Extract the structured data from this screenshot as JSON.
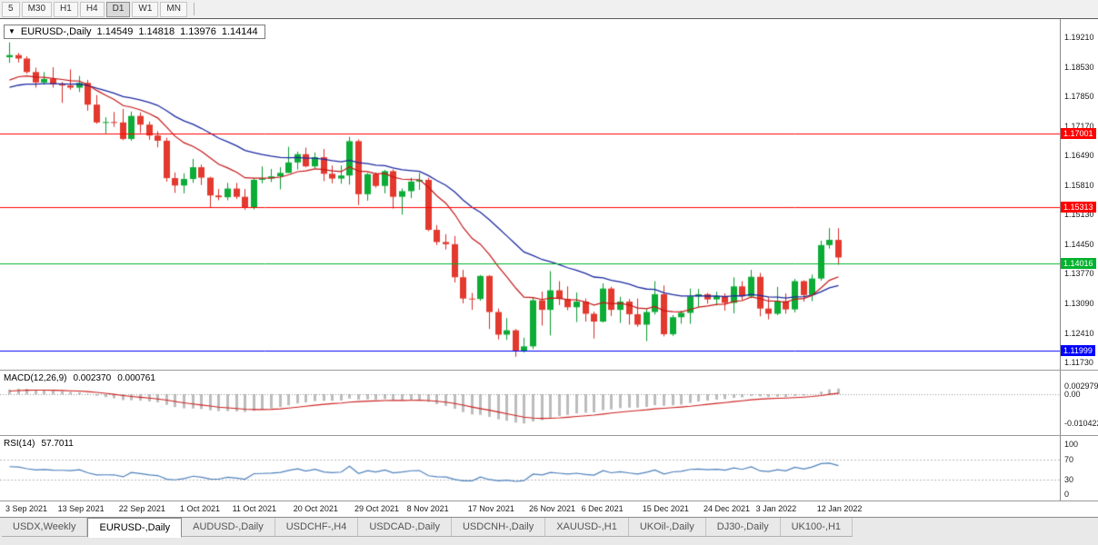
{
  "toolbar": {
    "timeframes": [
      {
        "label": "5",
        "active": false
      },
      {
        "label": "M30",
        "active": false
      },
      {
        "label": "H1",
        "active": false
      },
      {
        "label": "H4",
        "active": false
      },
      {
        "label": "D1",
        "active": true
      },
      {
        "label": "W1",
        "active": false
      },
      {
        "label": "MN",
        "active": false
      }
    ]
  },
  "chart": {
    "title": {
      "symbol": "EURUSD-,Daily",
      "open": "1.14549",
      "high": "1.14818",
      "low": "1.13976",
      "close": "1.14144"
    }
  },
  "chart_data": {
    "type": "candlestick",
    "symbol": "EURUSD-",
    "timeframe": "Daily",
    "candles": [
      [
        1.1875,
        1.1909,
        1.1862,
        1.188
      ],
      [
        1.188,
        1.1885,
        1.1863,
        1.1872
      ],
      [
        1.1872,
        1.1877,
        1.1837,
        1.1841
      ],
      [
        1.1841,
        1.1851,
        1.1805,
        1.1817
      ],
      [
        1.1817,
        1.1841,
        1.1812,
        1.1825
      ],
      [
        1.1825,
        1.1852,
        1.1805,
        1.1813
      ],
      [
        1.1813,
        1.1818,
        1.177,
        1.181
      ],
      [
        1.181,
        1.1847,
        1.18,
        1.1805
      ],
      [
        1.1805,
        1.1832,
        1.1795,
        1.1816
      ],
      [
        1.1816,
        1.1823,
        1.1752,
        1.1766
      ],
      [
        1.1766,
        1.1788,
        1.1722,
        1.1725
      ],
      [
        1.1725,
        1.1737,
        1.17,
        1.1726
      ],
      [
        1.1726,
        1.1749,
        1.1715,
        1.1725
      ],
      [
        1.1725,
        1.1756,
        1.1684,
        1.1687
      ],
      [
        1.1687,
        1.175,
        1.1683,
        1.174
      ],
      [
        1.174,
        1.1748,
        1.1701,
        1.172
      ],
      [
        1.172,
        1.1727,
        1.1685,
        1.1695
      ],
      [
        1.1695,
        1.1705,
        1.1668,
        1.1683
      ],
      [
        1.1683,
        1.169,
        1.1589,
        1.1597
      ],
      [
        1.1597,
        1.161,
        1.1563,
        1.158
      ],
      [
        1.158,
        1.1608,
        1.1562,
        1.1595
      ],
      [
        1.1595,
        1.1641,
        1.1586,
        1.1622
      ],
      [
        1.1622,
        1.1628,
        1.1581,
        1.1598
      ],
      [
        1.1598,
        1.16,
        1.1529,
        1.1557
      ],
      [
        1.1557,
        1.1572,
        1.1546,
        1.1553
      ],
      [
        1.1553,
        1.1586,
        1.1546,
        1.1573
      ],
      [
        1.1573,
        1.1586,
        1.1549,
        1.1554
      ],
      [
        1.1554,
        1.1572,
        1.1524,
        1.1529
      ],
      [
        1.1529,
        1.1597,
        1.1525,
        1.1593
      ],
      [
        1.1593,
        1.1624,
        1.1585,
        1.1596
      ],
      [
        1.1596,
        1.1618,
        1.1588,
        1.1601
      ],
      [
        1.1601,
        1.1622,
        1.1571,
        1.1609
      ],
      [
        1.1609,
        1.1669,
        1.1609,
        1.1633
      ],
      [
        1.1633,
        1.1658,
        1.1617,
        1.1652
      ],
      [
        1.1652,
        1.1667,
        1.1622,
        1.1624
      ],
      [
        1.1624,
        1.1656,
        1.162,
        1.1645
      ],
      [
        1.1645,
        1.1664,
        1.159,
        1.1607
      ],
      [
        1.1607,
        1.1626,
        1.1585,
        1.1596
      ],
      [
        1.1596,
        1.1626,
        1.1584,
        1.1603
      ],
      [
        1.1603,
        1.1692,
        1.1582,
        1.1682
      ],
      [
        1.1682,
        1.1686,
        1.1535,
        1.156
      ],
      [
        1.156,
        1.1609,
        1.1545,
        1.1606
      ],
      [
        1.1606,
        1.161,
        1.1575,
        1.1579
      ],
      [
        1.1579,
        1.1616,
        1.1562,
        1.1613
      ],
      [
        1.1613,
        1.1617,
        1.1527,
        1.1554
      ],
      [
        1.1554,
        1.1573,
        1.1513,
        1.1567
      ],
      [
        1.1567,
        1.1598,
        1.1551,
        1.1589
      ],
      [
        1.1589,
        1.1609,
        1.157,
        1.1593
      ],
      [
        1.1593,
        1.1598,
        1.1475,
        1.1478
      ],
      [
        1.1478,
        1.1489,
        1.1443,
        1.145
      ],
      [
        1.145,
        1.1468,
        1.1433,
        1.1445
      ],
      [
        1.1445,
        1.1464,
        1.1357,
        1.1369
      ],
      [
        1.1369,
        1.1386,
        1.1309,
        1.132
      ],
      [
        1.132,
        1.1333,
        1.1294,
        1.1319
      ],
      [
        1.1319,
        1.1374,
        1.1315,
        1.1372
      ],
      [
        1.1372,
        1.1374,
        1.125,
        1.1289
      ],
      [
        1.1289,
        1.1297,
        1.1226,
        1.1237
      ],
      [
        1.1237,
        1.1275,
        1.1225,
        1.1247
      ],
      [
        1.1247,
        1.125,
        1.1186,
        1.1199
      ],
      [
        1.1199,
        1.123,
        1.1196,
        1.121
      ],
      [
        1.121,
        1.1323,
        1.1204,
        1.1316
      ],
      [
        1.1316,
        1.1336,
        1.1258,
        1.1294
      ],
      [
        1.1294,
        1.1383,
        1.1235,
        1.1339
      ],
      [
        1.1339,
        1.136,
        1.1305,
        1.1319
      ],
      [
        1.1319,
        1.1348,
        1.1293,
        1.13
      ],
      [
        1.13,
        1.1334,
        1.1266,
        1.1313
      ],
      [
        1.1313,
        1.132,
        1.1267,
        1.1285
      ],
      [
        1.1285,
        1.129,
        1.1228,
        1.1267
      ],
      [
        1.1267,
        1.1355,
        1.1265,
        1.1343
      ],
      [
        1.1343,
        1.1347,
        1.128,
        1.1294
      ],
      [
        1.1294,
        1.1324,
        1.1264,
        1.1313
      ],
      [
        1.1313,
        1.1319,
        1.126,
        1.1284
      ],
      [
        1.1284,
        1.132,
        1.1255,
        1.126
      ],
      [
        1.126,
        1.1296,
        1.1222,
        1.1289
      ],
      [
        1.1289,
        1.136,
        1.1283,
        1.133
      ],
      [
        1.133,
        1.135,
        1.1233,
        1.1238
      ],
      [
        1.1238,
        1.1282,
        1.1234,
        1.1277
      ],
      [
        1.1277,
        1.1292,
        1.1262,
        1.1287
      ],
      [
        1.1287,
        1.1343,
        1.1262,
        1.1325
      ],
      [
        1.1325,
        1.1342,
        1.1301,
        1.133
      ],
      [
        1.133,
        1.1333,
        1.1308,
        1.1318
      ],
      [
        1.1318,
        1.1336,
        1.1304,
        1.1326
      ],
      [
        1.1326,
        1.1332,
        1.1292,
        1.131
      ],
      [
        1.131,
        1.1369,
        1.1286,
        1.1348
      ],
      [
        1.1348,
        1.136,
        1.1316,
        1.1325
      ],
      [
        1.1325,
        1.1386,
        1.1321,
        1.137
      ],
      [
        1.137,
        1.1379,
        1.1279,
        1.1297
      ],
      [
        1.1297,
        1.1323,
        1.1272,
        1.1285
      ],
      [
        1.1285,
        1.1347,
        1.1282,
        1.1314
      ],
      [
        1.1314,
        1.1332,
        1.1285,
        1.1295
      ],
      [
        1.1295,
        1.1365,
        1.1288,
        1.136
      ],
      [
        1.136,
        1.1362,
        1.1313,
        1.1328
      ],
      [
        1.1328,
        1.1375,
        1.1314,
        1.1366
      ],
      [
        1.1366,
        1.1453,
        1.1361,
        1.1443
      ],
      [
        1.1443,
        1.1482,
        1.1435,
        1.1455
      ],
      [
        1.14549,
        1.14818,
        1.13976,
        1.14144
      ]
    ],
    "x_ticks": [
      {
        "i": 0,
        "label": "3 Sep 2021"
      },
      {
        "i": 6,
        "label": "13 Sep 2021"
      },
      {
        "i": 13,
        "label": "22 Sep 2021"
      },
      {
        "i": 20,
        "label": "1 Oct 2021"
      },
      {
        "i": 26,
        "label": "11 Oct 2021"
      },
      {
        "i": 33,
        "label": "20 Oct 2021"
      },
      {
        "i": 40,
        "label": "29 Oct 2021"
      },
      {
        "i": 46,
        "label": "8 Nov 2021"
      },
      {
        "i": 53,
        "label": "17 Nov 2021"
      },
      {
        "i": 60,
        "label": "26 Nov 2021"
      },
      {
        "i": 66,
        "label": "6 Dec 2021"
      },
      {
        "i": 73,
        "label": "15 Dec 2021"
      },
      {
        "i": 80,
        "label": "24 Dec 2021"
      },
      {
        "i": 86,
        "label": "3 Jan 2022"
      },
      {
        "i": 93,
        "label": "12 Jan 2022"
      }
    ],
    "price_axis": {
      "ticks": [
        "1.19210",
        "1.18530",
        "1.17850",
        "1.17170",
        "1.16490",
        "1.15810",
        "1.15130",
        "1.14450",
        "1.13770",
        "1.13090",
        "1.12410",
        "1.11730"
      ],
      "visible_range": [
        1.1155,
        1.1946
      ]
    },
    "hlines": [
      {
        "value": 1.17001,
        "label": "1.17001",
        "color": "#ff0000"
      },
      {
        "value": 1.15313,
        "label": "1.15313",
        "color": "#ff0000"
      },
      {
        "value": 1.14016,
        "label": "1.14016",
        "color": "#00b22d"
      },
      {
        "value": 1.11999,
        "label": "1.11999",
        "color": "#0000ff"
      }
    ],
    "moving_averages": [
      {
        "name": "ema-fast",
        "period": 12,
        "color": "#c61616",
        "seed": 1.1812
      },
      {
        "name": "ema-slow",
        "period": 26,
        "color": "#1c2aa0",
        "seed": 1.18
      }
    ],
    "macd": {
      "label": "MACD(12,26,9)",
      "value_main": "0.002370",
      "value_signal": "0.000761",
      "fast": 12,
      "slow": 26,
      "signal": 9,
      "signal_seed": 0.001,
      "histogram_color": "#bdbdbd",
      "signal_color": "#cc2222",
      "axis_labels": [
        {
          "value": 0.002979,
          "label": "0.002979"
        },
        {
          "value": 0,
          "label": "0.00"
        },
        {
          "value": -0.010422,
          "label": "-0.010422"
        }
      ]
    },
    "rsi": {
      "label": "RSI(14)",
      "value": "57.7011",
      "period": 14,
      "color": "#4f81bd",
      "seed_gain": 0.0022,
      "seed_loss": 0.0018,
      "axis_labels": [
        {
          "value": 100,
          "label": "100"
        },
        {
          "value": 70,
          "label": "70"
        },
        {
          "value": 30,
          "label": "30"
        },
        {
          "value": 0,
          "label": "0"
        }
      ],
      "level_lines": [
        70,
        30
      ]
    }
  },
  "tabs": [
    {
      "label": "USDX,Weekly",
      "active": false
    },
    {
      "label": "EURUSD-,Daily",
      "active": true
    },
    {
      "label": "AUDUSD-,Daily",
      "active": false
    },
    {
      "label": "USDCHF-,H4",
      "active": false
    },
    {
      "label": "USDCAD-,Daily",
      "active": false
    },
    {
      "label": "USDCNH-,Daily",
      "active": false
    },
    {
      "label": "XAUUSD-,H1",
      "active": false
    },
    {
      "label": "UKOil-,Daily",
      "active": false
    },
    {
      "label": "DJ30-,Daily",
      "active": false
    },
    {
      "label": "UK100-,H1",
      "active": false
    }
  ]
}
